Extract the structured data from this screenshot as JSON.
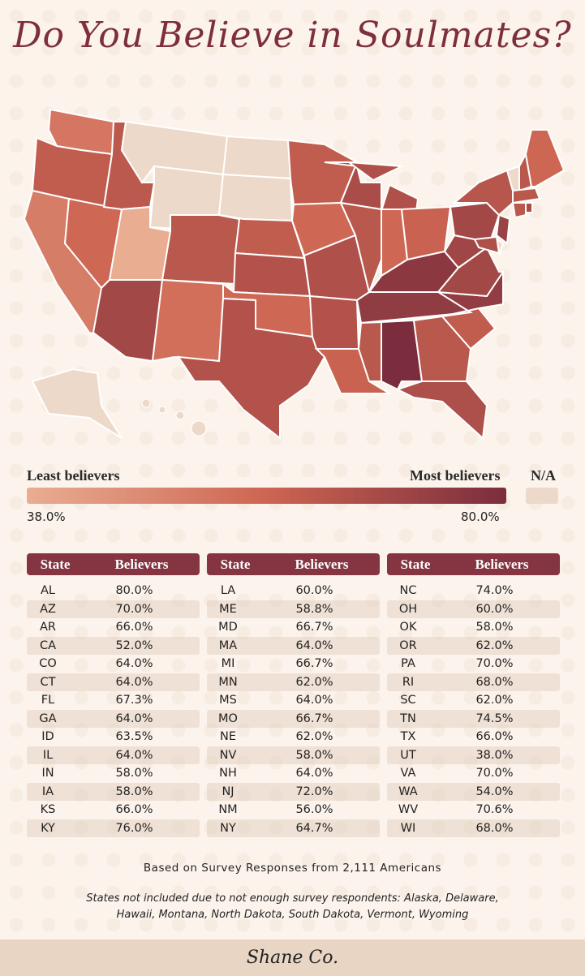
{
  "title": "Do You Believe in Soulmates?",
  "legend": {
    "least_label": "Least believers",
    "most_label": "Most believers",
    "na_label": "N/A",
    "min_value": "38.0%",
    "max_value": "80.0%",
    "colors": {
      "low": "#e9ad92",
      "mid": "#cd6552",
      "high": "#7b2d3d",
      "na": "#ecd9c9"
    }
  },
  "table": {
    "header_state": "State",
    "header_believers": "Believers",
    "columns": [
      [
        [
          "AL",
          "80.0%"
        ],
        [
          "AZ",
          "70.0%"
        ],
        [
          "AR",
          "66.0%"
        ],
        [
          "CA",
          "52.0%"
        ],
        [
          "CO",
          "64.0%"
        ],
        [
          "CT",
          "64.0%"
        ],
        [
          "FL",
          "67.3%"
        ],
        [
          "GA",
          "64.0%"
        ],
        [
          "ID",
          "63.5%"
        ],
        [
          "IL",
          "64.0%"
        ],
        [
          "IN",
          "58.0%"
        ],
        [
          "IA",
          "58.0%"
        ],
        [
          "KS",
          "66.0%"
        ],
        [
          "KY",
          "76.0%"
        ]
      ],
      [
        [
          "LA",
          "60.0%"
        ],
        [
          "ME",
          "58.8%"
        ],
        [
          "MD",
          "66.7%"
        ],
        [
          "MA",
          "64.0%"
        ],
        [
          "MI",
          "66.7%"
        ],
        [
          "MN",
          "62.0%"
        ],
        [
          "MS",
          "64.0%"
        ],
        [
          "MO",
          "66.7%"
        ],
        [
          "NE",
          "62.0%"
        ],
        [
          "NV",
          "58.0%"
        ],
        [
          "NH",
          "64.0%"
        ],
        [
          "NJ",
          "72.0%"
        ],
        [
          "NM",
          "56.0%"
        ],
        [
          "NY",
          "64.7%"
        ]
      ],
      [
        [
          "NC",
          "74.0%"
        ],
        [
          "OH",
          "60.0%"
        ],
        [
          "OK",
          "58.0%"
        ],
        [
          "OR",
          "62.0%"
        ],
        [
          "PA",
          "70.0%"
        ],
        [
          "RI",
          "68.0%"
        ],
        [
          "SC",
          "62.0%"
        ],
        [
          "TN",
          "74.5%"
        ],
        [
          "TX",
          "66.0%"
        ],
        [
          "UT",
          "38.0%"
        ],
        [
          "VA",
          "70.0%"
        ],
        [
          "WA",
          "54.0%"
        ],
        [
          "WV",
          "70.6%"
        ],
        [
          "WI",
          "68.0%"
        ]
      ]
    ]
  },
  "na_states": [
    "AK",
    "DE",
    "HI",
    "MT",
    "ND",
    "SD",
    "VT",
    "WY"
  ],
  "survey_note": "Based on Survey Responses from 2,111 Americans",
  "excluded_note_line1": "States not included due to not enough survey respondents: Alaska, Delaware,",
  "excluded_note_line2": "Hawaii, Montana, North Dakota, South Dakota, Vermont, Wyoming",
  "brand": "Shane Co."
}
